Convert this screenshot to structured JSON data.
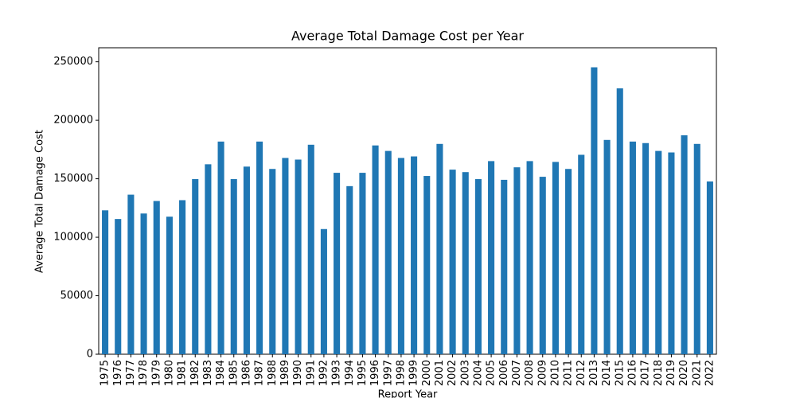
{
  "chart_data": {
    "type": "bar",
    "title": "Average Total Damage Cost per Year",
    "x_label": "Report Year",
    "y_label": "Average Total Damage Cost",
    "categories": [
      "1975",
      "1976",
      "1977",
      "1978",
      "1979",
      "1980",
      "1981",
      "1982",
      "1983",
      "1984",
      "1985",
      "1986",
      "1987",
      "1988",
      "1989",
      "1990",
      "1991",
      "1992",
      "1993",
      "1994",
      "1995",
      "1996",
      "1997",
      "1998",
      "1999",
      "2000",
      "2001",
      "2002",
      "2003",
      "2004",
      "2005",
      "2006",
      "2007",
      "2008",
      "2009",
      "2010",
      "2011",
      "2012",
      "2013",
      "2014",
      "2015",
      "2016",
      "2017",
      "2018",
      "2019",
      "2020",
      "2021",
      "2022"
    ],
    "values": [
      123000,
      115600,
      136400,
      120300,
      131000,
      117600,
      131700,
      149700,
      162400,
      181800,
      149700,
      160400,
      181800,
      158400,
      167800,
      166400,
      179100,
      107000,
      155100,
      143700,
      155100,
      178500,
      173800,
      167800,
      169100,
      152400,
      179800,
      157800,
      155700,
      149700,
      165100,
      149100,
      159800,
      165100,
      151700,
      164400,
      158400,
      170500,
      245300,
      183200,
      227300,
      181800,
      180500,
      173800,
      172500,
      187200,
      179800,
      147700
    ],
    "color": "#1f77b4",
    "ylim": [
      0,
      262000
    ],
    "yticks": [
      0,
      50000,
      100000,
      150000,
      200000,
      250000
    ],
    "grid": false
  }
}
